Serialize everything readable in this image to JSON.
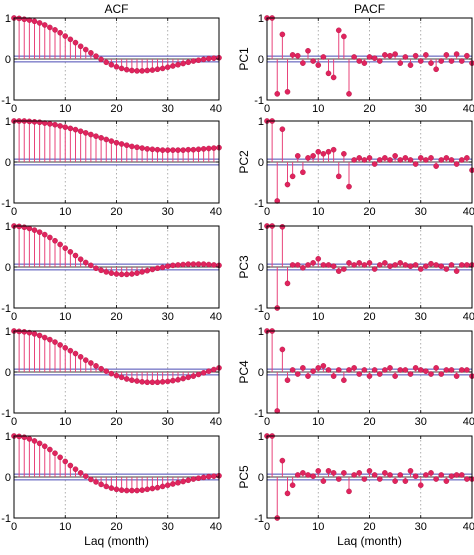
{
  "colors": {
    "stem": "#e8437a",
    "marker": "#e0245e",
    "bound": "#4a4ab5",
    "zero": "#000000",
    "grid": "#9a9a9a"
  },
  "chart_data": [
    {
      "type": "stem",
      "title": "ACF",
      "ylabel": "",
      "xlabel": "",
      "xlim": [
        0,
        40
      ],
      "ylim": [
        -1,
        1
      ],
      "xticks": [
        "0",
        "10",
        "20",
        "30",
        "40"
      ],
      "yticks": [
        "-1",
        "0",
        "1"
      ],
      "bound": 0.07,
      "values": [
        1.0,
        0.99,
        0.97,
        0.95,
        0.92,
        0.88,
        0.83,
        0.77,
        0.71,
        0.64,
        0.56,
        0.48,
        0.4,
        0.31,
        0.23,
        0.15,
        0.07,
        -0.01,
        -0.08,
        -0.14,
        -0.19,
        -0.23,
        -0.26,
        -0.28,
        -0.29,
        -0.29,
        -0.28,
        -0.27,
        -0.25,
        -0.23,
        -0.2,
        -0.17,
        -0.14,
        -0.11,
        -0.08,
        -0.05,
        -0.03,
        -0.01,
        0.01,
        0.02,
        0.03
      ]
    },
    {
      "type": "stem",
      "title": "PACF",
      "ylabel": "PC1",
      "xlabel": "",
      "xlim": [
        0,
        40
      ],
      "ylim": [
        -1,
        1
      ],
      "xticks": [
        "0",
        "10",
        "20",
        "30",
        "40"
      ],
      "yticks": [
        "-1",
        "0",
        "1"
      ],
      "bound": 0.07,
      "values": [
        1.0,
        1.0,
        -0.85,
        0.6,
        -0.8,
        0.1,
        0.08,
        -0.1,
        0.2,
        -0.05,
        -0.15,
        0.05,
        -0.35,
        -0.45,
        0.7,
        0.55,
        -0.85,
        0.05,
        -0.05,
        -0.1,
        0.05,
        0.02,
        -0.05,
        0.1,
        0.08,
        0.12,
        -0.1,
        0.05,
        -0.15,
        0.08,
        -0.05,
        0.1,
        -0.1,
        -0.25,
        -0.05,
        0.1,
        -0.05,
        0.12,
        -0.05,
        0.08,
        -0.1
      ]
    },
    {
      "type": "stem",
      "title": "",
      "ylabel": "",
      "xlabel": "",
      "xlim": [
        0,
        40
      ],
      "ylim": [
        -1,
        1
      ],
      "xticks": [
        "0",
        "10",
        "20",
        "30",
        "40"
      ],
      "yticks": [
        "-1",
        "0",
        "1"
      ],
      "bound": 0.07,
      "values": [
        1.0,
        1.0,
        1.0,
        0.99,
        0.98,
        0.97,
        0.95,
        0.93,
        0.91,
        0.88,
        0.85,
        0.82,
        0.79,
        0.75,
        0.71,
        0.67,
        0.63,
        0.59,
        0.55,
        0.51,
        0.47,
        0.44,
        0.41,
        0.38,
        0.36,
        0.34,
        0.32,
        0.31,
        0.3,
        0.29,
        0.29,
        0.29,
        0.29,
        0.29,
        0.3,
        0.3,
        0.31,
        0.32,
        0.33,
        0.34,
        0.35
      ]
    },
    {
      "type": "stem",
      "title": "",
      "ylabel": "PC2",
      "xlabel": "",
      "xlim": [
        0,
        40
      ],
      "ylim": [
        -1,
        1
      ],
      "xticks": [
        "0",
        "10",
        "20",
        "30",
        "40"
      ],
      "yticks": [
        "-1",
        "0",
        "1"
      ],
      "bound": 0.07,
      "values": [
        1.0,
        1.0,
        -0.95,
        0.8,
        -0.55,
        -0.35,
        0.15,
        -0.25,
        0.1,
        0.15,
        0.25,
        0.2,
        0.25,
        0.3,
        -0.35,
        0.2,
        -0.6,
        0.05,
        0.1,
        0.05,
        0.1,
        -0.05,
        0.05,
        0.1,
        0.05,
        0.15,
        0.05,
        0.1,
        0.05,
        -0.05,
        0.1,
        0.05,
        0.1,
        -0.1,
        0.05,
        0.1,
        0.05,
        -0.05,
        0.05,
        0.1,
        -0.2
      ]
    },
    {
      "type": "stem",
      "title": "",
      "ylabel": "",
      "xlabel": "",
      "xlim": [
        0,
        40
      ],
      "ylim": [
        -1,
        1
      ],
      "xticks": [
        "0",
        "10",
        "20",
        "30",
        "40"
      ],
      "yticks": [
        "-1",
        "0",
        "1"
      ],
      "bound": 0.07,
      "values": [
        1.0,
        0.99,
        0.97,
        0.94,
        0.9,
        0.85,
        0.79,
        0.72,
        0.64,
        0.55,
        0.46,
        0.37,
        0.28,
        0.19,
        0.11,
        0.04,
        -0.03,
        -0.08,
        -0.12,
        -0.15,
        -0.17,
        -0.18,
        -0.18,
        -0.17,
        -0.15,
        -0.12,
        -0.09,
        -0.06,
        -0.03,
        -0.01,
        0.02,
        0.04,
        0.05,
        0.06,
        0.07,
        0.07,
        0.07,
        0.07,
        0.06,
        0.05,
        0.04
      ]
    },
    {
      "type": "stem",
      "title": "",
      "ylabel": "PC3",
      "xlabel": "",
      "xlim": [
        0,
        40
      ],
      "ylim": [
        -1,
        1
      ],
      "xticks": [
        "0",
        "10",
        "20",
        "30",
        "40"
      ],
      "yticks": [
        "-1",
        "0",
        "1"
      ],
      "bound": 0.07,
      "values": [
        1.0,
        1.0,
        -1.0,
        0.98,
        -0.4,
        0.05,
        0.05,
        -0.02,
        0.05,
        0.1,
        0.2,
        0.05,
        0.05,
        0.02,
        -0.1,
        -0.05,
        0.1,
        0.05,
        0.1,
        0.05,
        0.1,
        -0.05,
        0.05,
        0.1,
        0.02,
        0.05,
        0.1,
        0.05,
        0.02,
        0.05,
        -0.05,
        0.02,
        0.08,
        0.05,
        0.02,
        -0.05,
        0.05,
        -0.1,
        0.05,
        0.05,
        0.05
      ]
    },
    {
      "type": "stem",
      "title": "",
      "ylabel": "",
      "xlabel": "",
      "xlim": [
        0,
        40
      ],
      "ylim": [
        -1,
        1
      ],
      "xticks": [
        "0",
        "10",
        "20",
        "30",
        "40"
      ],
      "yticks": [
        "-1",
        "0",
        "1"
      ],
      "bound": 0.07,
      "values": [
        1.0,
        0.99,
        0.98,
        0.96,
        0.93,
        0.89,
        0.84,
        0.79,
        0.73,
        0.66,
        0.59,
        0.52,
        0.45,
        0.37,
        0.29,
        0.22,
        0.15,
        0.08,
        0.02,
        -0.04,
        -0.09,
        -0.13,
        -0.17,
        -0.2,
        -0.22,
        -0.24,
        -0.25,
        -0.25,
        -0.25,
        -0.24,
        -0.23,
        -0.21,
        -0.19,
        -0.16,
        -0.13,
        -0.1,
        -0.06,
        -0.02,
        0.02,
        0.06,
        0.1
      ]
    },
    {
      "type": "stem",
      "title": "",
      "ylabel": "PC4",
      "xlabel": "",
      "xlim": [
        0,
        40
      ],
      "ylim": [
        -1,
        1
      ],
      "xticks": [
        "0",
        "10",
        "20",
        "30",
        "40"
      ],
      "yticks": [
        "-1",
        "0",
        "1"
      ],
      "bound": 0.07,
      "values": [
        1.0,
        1.0,
        -0.95,
        0.55,
        -0.2,
        0.05,
        -0.05,
        0.1,
        -0.1,
        0.02,
        0.1,
        0.15,
        0.05,
        -0.1,
        0.05,
        -0.2,
        0.05,
        0.1,
        -0.05,
        0.05,
        -0.1,
        0.05,
        -0.05,
        0.05,
        0.1,
        -0.1,
        0.05,
        0.05,
        -0.05,
        0.1,
        0.05,
        0.02,
        -0.05,
        0.1,
        -0.05,
        0.05,
        0.05,
        -0.1,
        0.05,
        0.05,
        -0.1
      ]
    },
    {
      "type": "stem",
      "title": "",
      "ylabel": "",
      "xlabel": "Laq (month)",
      "xlim": [
        0,
        40
      ],
      "ylim": [
        -1,
        1
      ],
      "xticks": [
        "0",
        "10",
        "20",
        "30",
        "40"
      ],
      "yticks": [
        "-1",
        "0",
        "1"
      ],
      "bound": 0.07,
      "values": [
        1.0,
        0.99,
        0.97,
        0.93,
        0.88,
        0.82,
        0.75,
        0.67,
        0.58,
        0.48,
        0.38,
        0.28,
        0.19,
        0.1,
        0.02,
        -0.06,
        -0.12,
        -0.18,
        -0.23,
        -0.27,
        -0.3,
        -0.32,
        -0.33,
        -0.33,
        -0.33,
        -0.32,
        -0.3,
        -0.28,
        -0.26,
        -0.23,
        -0.2,
        -0.17,
        -0.14,
        -0.11,
        -0.08,
        -0.05,
        -0.03,
        -0.01,
        0.01,
        0.02,
        0.03
      ]
    },
    {
      "type": "stem",
      "title": "",
      "ylabel": "PC5",
      "xlabel": "Laq (month)",
      "xlim": [
        0,
        40
      ],
      "ylim": [
        -1,
        1
      ],
      "xticks": [
        "0",
        "10",
        "20",
        "30",
        "40"
      ],
      "yticks": [
        "-1",
        "0",
        "1"
      ],
      "bound": 0.07,
      "values": [
        1.0,
        1.0,
        -1.0,
        0.4,
        -0.4,
        -0.2,
        0.05,
        0.1,
        0.05,
        0.02,
        0.15,
        -0.1,
        0.15,
        0.1,
        -0.05,
        0.1,
        -0.35,
        0.05,
        0.1,
        -0.05,
        0.15,
        0.05,
        -0.05,
        0.1,
        0.05,
        -0.1,
        0.05,
        -0.1,
        0.15,
        0.02,
        -0.2,
        0.05,
        0.1,
        -0.05,
        0.05,
        -0.1,
        0.02,
        0.05,
        0.05,
        -0.05,
        -0.05
      ]
    }
  ]
}
